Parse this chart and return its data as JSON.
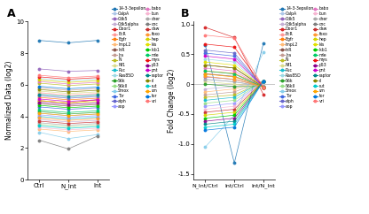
{
  "panel_A": {
    "title": "A",
    "ylabel": "Normalized Data (log2)",
    "xtick_labels": [
      "Ctrl",
      "N_Int",
      "Int"
    ],
    "ylim": [
      0,
      10
    ],
    "yticks": [
      0,
      2,
      4,
      6,
      8,
      10
    ],
    "genes": {
      "14-3-3epsilon": {
        "color": "#1f77b4",
        "values": [
          8.8,
          8.65,
          8.8
        ]
      },
      "CalpA": {
        "color": "#aec7e8",
        "values": [
          4.2,
          4.05,
          4.15
        ]
      },
      "Cdk5": {
        "color": "#9467bd",
        "values": [
          7.0,
          6.85,
          6.9
        ]
      },
      "Cdk5alpha": {
        "color": "#c5b0d5",
        "values": [
          3.8,
          3.65,
          3.75
        ]
      },
      "Door1": {
        "color": "#d62728",
        "values": [
          5.0,
          4.85,
          5.05
        ]
      },
      "EcR": {
        "color": "#ff9896",
        "values": [
          5.5,
          5.35,
          5.45
        ]
      },
      "Egfr": {
        "color": "#ff7f0e",
        "values": [
          5.2,
          5.05,
          5.15
        ]
      },
      "ImpL2": {
        "color": "#ffbb78",
        "values": [
          3.2,
          3.05,
          3.15
        ]
      },
      "InR": {
        "color": "#8c564b",
        "values": [
          4.8,
          4.65,
          4.75
        ]
      },
      "Jra": {
        "color": "#c49c94",
        "values": [
          5.8,
          5.65,
          5.75
        ]
      },
      "N": {
        "color": "#bcbd22",
        "values": [
          6.1,
          5.95,
          6.05
        ]
      },
      "Nf1": {
        "color": "#dbdb8d",
        "values": [
          5.6,
          5.45,
          5.55
        ]
      },
      "Puc": {
        "color": "#17becf",
        "values": [
          4.0,
          3.85,
          3.95
        ]
      },
      "Ras85D": {
        "color": "#9edae5",
        "values": [
          6.4,
          6.25,
          6.35
        ]
      },
      "S6k": {
        "color": "#2ca02c",
        "values": [
          4.3,
          4.15,
          4.25
        ]
      },
      "S6kII": {
        "color": "#98df8a",
        "values": [
          3.5,
          3.35,
          3.45
        ]
      },
      "Smox": {
        "color": "#87ceeb",
        "values": [
          3.0,
          2.6,
          2.85
        ]
      },
      "Tor": {
        "color": "#4169e1",
        "values": [
          4.6,
          4.45,
          4.55
        ]
      },
      "alph": {
        "color": "#6666cc",
        "values": [
          5.3,
          5.15,
          5.25
        ]
      },
      "aop": {
        "color": "#9999ff",
        "values": [
          4.1,
          3.95,
          4.05
        ]
      },
      "babo": {
        "color": "#e377c2",
        "values": [
          6.2,
          6.05,
          6.15
        ]
      },
      "bun": {
        "color": "#f7b6d2",
        "values": [
          3.3,
          3.15,
          3.25
        ]
      },
      "cher": {
        "color": "#aaaaaa",
        "values": [
          3.6,
          3.45,
          3.55
        ]
      },
      "cnc": {
        "color": "#7f7f7f",
        "values": [
          2.5,
          1.95,
          2.75
        ]
      },
      "daw": {
        "color": "#c83232",
        "values": [
          3.7,
          3.55,
          3.65
        ]
      },
      "foxo": {
        "color": "#ff9933",
        "values": [
          3.9,
          3.75,
          3.85
        ]
      },
      "hep": {
        "color": "#d4d400",
        "values": [
          6.3,
          6.15,
          6.25
        ]
      },
      "kis": {
        "color": "#e0e000",
        "values": [
          5.0,
          4.85,
          4.95
        ]
      },
      "lkb1": {
        "color": "#00cc00",
        "values": [
          4.7,
          4.55,
          4.65
        ]
      },
      "mle": {
        "color": "#00cc66",
        "values": [
          4.4,
          4.25,
          4.35
        ]
      },
      "mys": {
        "color": "#ee1111",
        "values": [
          6.5,
          6.35,
          6.45
        ]
      },
      "p53": {
        "color": "#8b008b",
        "values": [
          4.9,
          4.75,
          4.85
        ]
      },
      "pnt": {
        "color": "#cc00cc",
        "values": [
          5.1,
          4.95,
          5.05
        ]
      },
      "raptor": {
        "color": "#008888",
        "values": [
          5.4,
          5.25,
          5.35
        ]
      },
      "rl": {
        "color": "#888800",
        "values": [
          5.7,
          5.55,
          5.65
        ]
      },
      "rut": {
        "color": "#00cccc",
        "values": [
          3.4,
          3.25,
          3.35
        ]
      },
      "sm": {
        "color": "#ffa500",
        "values": [
          4.2,
          4.05,
          4.15
        ]
      },
      "tor": {
        "color": "#0077dd",
        "values": [
          5.9,
          5.75,
          5.85
        ]
      },
      "vri": {
        "color": "#ff7777",
        "values": [
          6.6,
          6.45,
          6.55
        ]
      }
    }
  },
  "panel_B": {
    "title": "B",
    "ylabel": "Fold Change (log2)",
    "xtick_labels": [
      "N_Int/Ctrl",
      "Int/Ctrl",
      "Int/N_Int"
    ],
    "ylim": [
      -1.6,
      1.05
    ],
    "yticks": [
      -1.5,
      -1.0,
      -0.5,
      0.0,
      0.5,
      1.0
    ],
    "genes": {
      "14-3-3epsilon": {
        "color": "#1f77b4",
        "values": [
          0.65,
          -1.32,
          0.68
        ]
      },
      "CalpA": {
        "color": "#aec7e8",
        "values": [
          0.08,
          0.04,
          -0.04
        ]
      },
      "Cdk5": {
        "color": "#9467bd",
        "values": [
          0.12,
          0.08,
          -0.04
        ]
      },
      "Cdk5alpha": {
        "color": "#c5b0d5",
        "values": [
          -0.08,
          -0.04,
          0.04
        ]
      },
      "Door1": {
        "color": "#d62728",
        "values": [
          0.95,
          0.78,
          -0.17
        ]
      },
      "EcR": {
        "color": "#ff9896",
        "values": [
          0.18,
          0.13,
          -0.05
        ]
      },
      "Egfr": {
        "color": "#ff7f0e",
        "values": [
          0.22,
          0.18,
          -0.04
        ]
      },
      "ImpL2": {
        "color": "#ffbb78",
        "values": [
          -0.13,
          -0.08,
          0.05
        ]
      },
      "InR": {
        "color": "#8c564b",
        "values": [
          0.32,
          0.27,
          -0.05
        ]
      },
      "Jra": {
        "color": "#c49c94",
        "values": [
          -0.18,
          -0.13,
          0.05
        ]
      },
      "N": {
        "color": "#bcbd22",
        "values": [
          -0.22,
          -0.18,
          0.04
        ]
      },
      "Nf1": {
        "color": "#dbdb8d",
        "values": [
          0.04,
          0.0,
          -0.04
        ]
      },
      "Puc": {
        "color": "#17becf",
        "values": [
          -0.27,
          -0.22,
          0.05
        ]
      },
      "Ras85D": {
        "color": "#9edae5",
        "values": [
          0.42,
          0.37,
          -0.05
        ]
      },
      "S6k": {
        "color": "#2ca02c",
        "values": [
          0.0,
          -0.04,
          -0.04
        ]
      },
      "S6kII": {
        "color": "#98df8a",
        "values": [
          -0.32,
          -0.27,
          0.05
        ]
      },
      "Smox": {
        "color": "#87ceeb",
        "values": [
          -1.05,
          -0.52,
          0.53
        ]
      },
      "Tor": {
        "color": "#4169e1",
        "values": [
          0.52,
          0.47,
          -0.05
        ]
      },
      "alph": {
        "color": "#6666cc",
        "values": [
          0.57,
          0.52,
          -0.05
        ]
      },
      "aop": {
        "color": "#9999ff",
        "values": [
          -0.37,
          -0.32,
          0.05
        ]
      },
      "babo": {
        "color": "#e377c2",
        "values": [
          0.27,
          0.22,
          -0.05
        ]
      },
      "bun": {
        "color": "#f7b6d2",
        "values": [
          -0.42,
          -0.37,
          0.05
        ]
      },
      "cher": {
        "color": "#aaaaaa",
        "values": [
          0.08,
          0.04,
          -0.04
        ]
      },
      "cnc": {
        "color": "#7f7f7f",
        "values": [
          0.17,
          0.13,
          -0.04
        ]
      },
      "daw": {
        "color": "#c83232",
        "values": [
          -0.47,
          -0.42,
          0.05
        ]
      },
      "foxo": {
        "color": "#ff9933",
        "values": [
          0.13,
          0.08,
          -0.05
        ]
      },
      "hep": {
        "color": "#d4d400",
        "values": [
          -0.52,
          -0.47,
          0.05
        ]
      },
      "kis": {
        "color": "#e0e000",
        "values": [
          0.37,
          0.32,
          -0.05
        ]
      },
      "lkb1": {
        "color": "#00cc00",
        "values": [
          -0.57,
          -0.52,
          0.05
        ]
      },
      "mle": {
        "color": "#00cc66",
        "values": [
          0.22,
          0.17,
          -0.05
        ]
      },
      "mys": {
        "color": "#ee1111",
        "values": [
          0.67,
          0.62,
          -0.05
        ]
      },
      "p53": {
        "color": "#8b008b",
        "values": [
          -0.62,
          -0.57,
          0.05
        ]
      },
      "pnt": {
        "color": "#cc00cc",
        "values": [
          0.47,
          0.42,
          -0.05
        ]
      },
      "raptor": {
        "color": "#008888",
        "values": [
          -0.67,
          -0.62,
          0.05
        ]
      },
      "rl": {
        "color": "#888800",
        "values": [
          0.32,
          0.27,
          -0.05
        ]
      },
      "rut": {
        "color": "#00cccc",
        "values": [
          -0.72,
          -0.67,
          0.05
        ]
      },
      "sm": {
        "color": "#ffa500",
        "values": [
          0.17,
          0.12,
          -0.05
        ]
      },
      "tor": {
        "color": "#0077dd",
        "values": [
          -0.77,
          -0.72,
          0.05
        ]
      },
      "vri": {
        "color": "#ff7777",
        "values": [
          0.82,
          0.77,
          -0.05
        ]
      }
    }
  },
  "legend_col1": [
    "14-3-3epsilon",
    "CalpA",
    "Cdk5",
    "Cdk5alpha",
    "Door1",
    "EcR",
    "Egfr",
    "ImpL2",
    "InR",
    "Jra",
    "N",
    "Nf1",
    "Puc",
    "Ras85D",
    "S6k",
    "S6kII",
    "Smox",
    "Tor",
    "alph",
    "aop"
  ],
  "legend_col2": [
    "babo",
    "bun",
    "cher",
    "cnc",
    "daw",
    "foxo",
    "hep",
    "kis",
    "lkb1",
    "mle",
    "mys",
    "p53",
    "pnt",
    "raptor",
    "rl",
    "rut",
    "sm",
    "tor",
    "vri"
  ]
}
